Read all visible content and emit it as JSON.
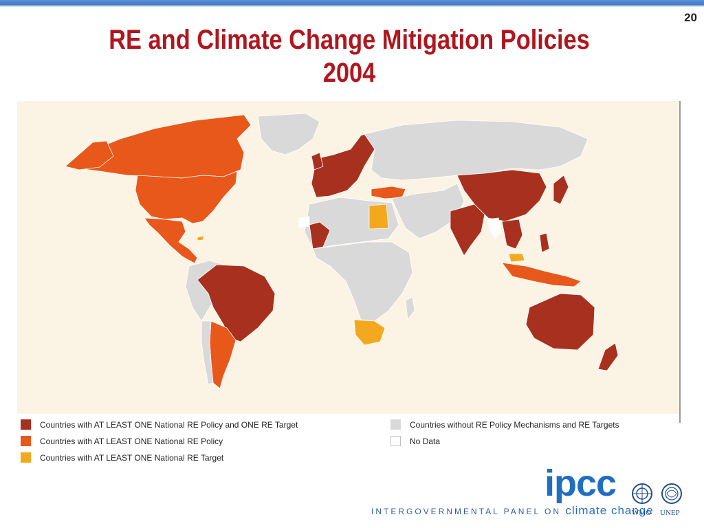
{
  "slide": {
    "number": "20",
    "title_line1": "RE and Climate Change Mitigation Policies",
    "title_line2": "2004"
  },
  "map": {
    "ocean_color": "#fbf3e4",
    "categories": {
      "policy_and_target": {
        "color": "#a8301f"
      },
      "policy_only": {
        "color": "#e8581a"
      },
      "target_only": {
        "color": "#f4a81d"
      },
      "none": {
        "color": "#d9d9d9"
      },
      "no_data": {
        "color": "#ffffff"
      }
    }
  },
  "legend": {
    "items": [
      {
        "label": "Countries with AT LEAST ONE National RE Policy and ONE RE Target",
        "color": "#a8301f"
      },
      {
        "label": "Countries with AT LEAST ONE National RE Policy",
        "color": "#e8581a"
      },
      {
        "label": "Countries with AT LEAST ONE National RE Target",
        "color": "#f4a81d"
      },
      {
        "label": "Countries without RE Policy Mechanisms and RE Targets",
        "color": "#d9d9d9"
      },
      {
        "label": "No Data",
        "color": "#ffffff"
      }
    ]
  },
  "footer": {
    "org_prefix": "INTERGOVERNMENTAL PANEL ON",
    "org_suffix": "climate change",
    "logo_text": "ipcc",
    "partner1": "WMO",
    "partner2": "UNEP"
  }
}
